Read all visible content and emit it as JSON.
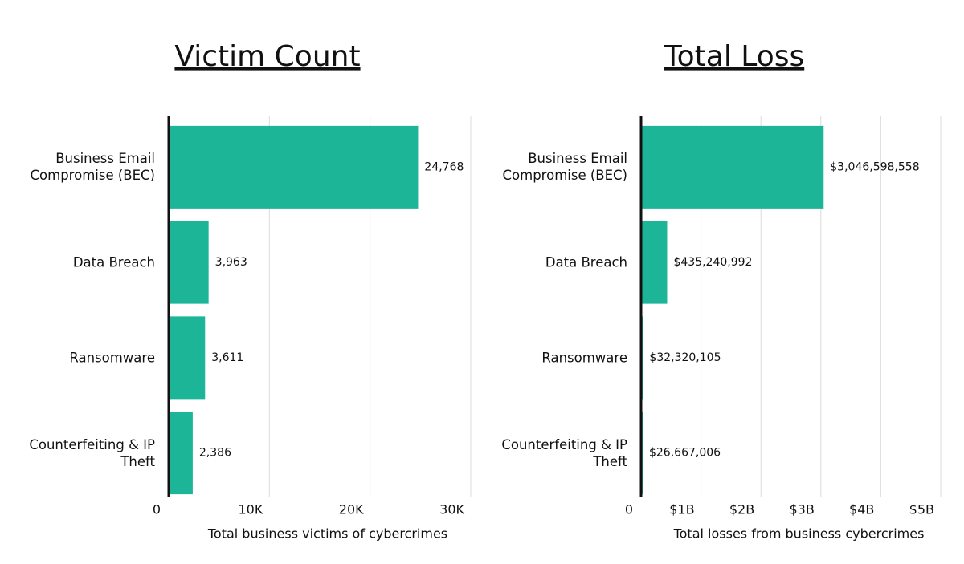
{
  "chart_data": [
    {
      "type": "barh",
      "title": "Victim Count",
      "xlabel": "Total business victims of cybercrimes",
      "categories": [
        "Business Email Compromise (BEC)",
        "Data Breach",
        "Ransomware",
        "Counterfeiting & IP Theft"
      ],
      "values": [
        24768,
        3963,
        3611,
        2386
      ],
      "value_labels": [
        "24,768",
        "3,963",
        "3,611",
        "2,386"
      ],
      "color": "#1db598",
      "xlim": [
        0,
        30000
      ],
      "xticks": [
        0,
        {
          "value": 10000,
          "label": "10K"
        },
        {
          "value": 20000,
          "label": "20K"
        },
        {
          "value": 30000,
          "label": "30K"
        }
      ],
      "grid": true
    },
    {
      "type": "barh",
      "title": "Total Loss",
      "xlabel": "Total losses from business cybercrimes",
      "categories": [
        "Business Email Compromise (BEC)",
        "Data Breach",
        "Ransomware",
        "Counterfeiting & IP Theft"
      ],
      "values": [
        3046598558,
        435240992,
        32320105,
        26667006
      ],
      "value_labels": [
        "$3,046,598,558",
        "$435,240,992",
        "$32,320,105",
        "$26,667,006"
      ],
      "color": "#1db598",
      "xlim": [
        0,
        5000000000
      ],
      "xticks": [
        0,
        {
          "value": 1000000000,
          "label": "$1B"
        },
        {
          "value": 2000000000,
          "label": "$2B"
        },
        {
          "value": 3000000000,
          "label": "$3B"
        },
        {
          "value": 4000000000,
          "label": "$4B"
        },
        {
          "value": 5000000000,
          "label": "$5B"
        }
      ],
      "grid": true
    }
  ]
}
